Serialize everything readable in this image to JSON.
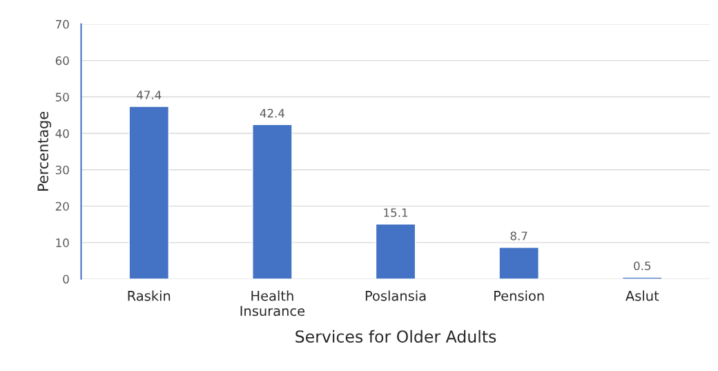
{
  "chart_data": {
    "type": "bar",
    "categories": [
      "Raskin",
      "Health\nInsurance",
      "Poslansia",
      "Pension",
      "Aslut"
    ],
    "values": [
      47.4,
      42.4,
      15.1,
      8.7,
      0.5
    ],
    "color": "#4472c4",
    "xlabel": "Services for Older Adults",
    "ylabel": "Percentage",
    "ylim": [
      0,
      70
    ],
    "yticks": [
      0,
      10,
      20,
      30,
      40,
      50,
      60,
      70
    ],
    "grid": "y",
    "data_labels": true
  }
}
